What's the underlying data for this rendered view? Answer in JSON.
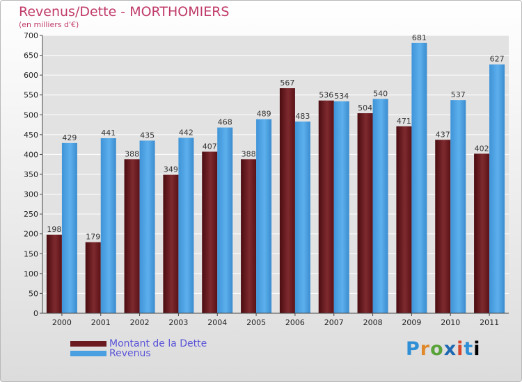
{
  "chart_data": {
    "type": "bar",
    "title": "Revenus/Dette - MORTHOMIERS",
    "subtitle": "(en milliers d'€)",
    "categories": [
      "2000",
      "2001",
      "2002",
      "2003",
      "2004",
      "2005",
      "2006",
      "2007",
      "2008",
      "2009",
      "2010",
      "2011"
    ],
    "series": [
      {
        "name": "Montant de la Dette",
        "color": "#6b1a1f",
        "values": [
          198,
          179,
          388,
          349,
          407,
          388,
          567,
          536,
          504,
          471,
          437,
          402
        ]
      },
      {
        "name": "Revenus",
        "color": "#4a9fe0",
        "values": [
          429,
          441,
          435,
          442,
          468,
          489,
          483,
          534,
          540,
          681,
          537,
          627
        ]
      }
    ],
    "ylim": [
      0,
      700
    ],
    "yticks": [
      0,
      50,
      100,
      150,
      200,
      250,
      300,
      350,
      400,
      450,
      500,
      550,
      600,
      650,
      700
    ],
    "grid": true,
    "legend": "bottom-left"
  },
  "logo": {
    "letters": [
      "P",
      "r",
      "o",
      "x",
      "i",
      "t",
      "i"
    ]
  }
}
